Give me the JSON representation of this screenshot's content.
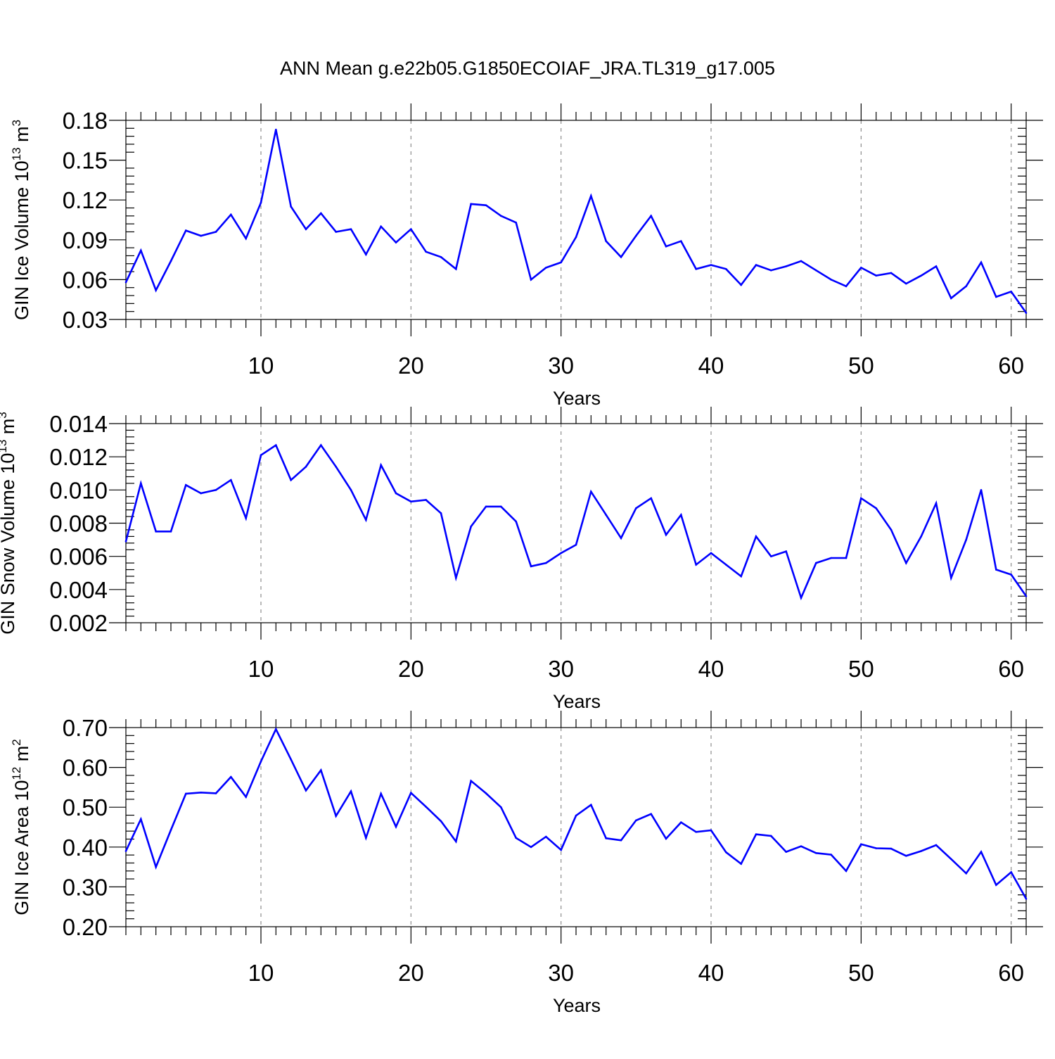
{
  "title": "ANN Mean g.e22b05.G1850ECOIAF_JRA.TL319_g17.005",
  "colors": {
    "series": "#0000ff",
    "axis": "#000000",
    "grid": "#8c8c8c"
  },
  "chart_data": [
    {
      "type": "line",
      "ylabel_main": "GIN Ice Volume 10",
      "ylabel_exp": "13",
      "ylabel_unit": " m",
      "ylabel_unit_exp": "3",
      "xlabel": "Years",
      "xlim": [
        1,
        61
      ],
      "ylim": [
        0.03,
        0.18
      ],
      "x_ticks": [
        "10",
        "20",
        "30",
        "40",
        "50",
        "60"
      ],
      "y_ticks": [
        "0.03",
        "0.06",
        "0.09",
        "0.12",
        "0.15",
        "0.18"
      ],
      "grid": "vertical dashed at x ticks",
      "series": [
        {
          "x": [
            1,
            2,
            3,
            4,
            5,
            6,
            7,
            8,
            9,
            10,
            11,
            12,
            13,
            14,
            15,
            16,
            17,
            18,
            19,
            20,
            21,
            22,
            23,
            24,
            25,
            26,
            27,
            28,
            29,
            30,
            31,
            32,
            33,
            34,
            35,
            36,
            37,
            38,
            39,
            40,
            41,
            42,
            43,
            44,
            45,
            46,
            47,
            48,
            49,
            50,
            51,
            52,
            53,
            54,
            55,
            56,
            57,
            58,
            59,
            60,
            61
          ],
          "values": [
            0.058,
            0.082,
            0.052,
            0.074,
            0.097,
            0.093,
            0.096,
            0.109,
            0.091,
            0.118,
            0.173,
            0.115,
            0.098,
            0.11,
            0.096,
            0.098,
            0.079,
            0.1,
            0.088,
            0.098,
            0.081,
            0.077,
            0.068,
            0.117,
            0.116,
            0.108,
            0.103,
            0.06,
            0.069,
            0.073,
            0.092,
            0.123,
            0.089,
            0.077,
            0.093,
            0.108,
            0.085,
            0.089,
            0.068,
            0.071,
            0.068,
            0.056,
            0.071,
            0.067,
            0.07,
            0.074,
            0.067,
            0.06,
            0.055,
            0.069,
            0.063,
            0.065,
            0.057,
            0.063,
            0.07,
            0.046,
            0.055,
            0.073,
            0.047,
            0.051,
            0.035
          ]
        }
      ]
    },
    {
      "type": "line",
      "ylabel_main": "GIN Snow Volume 10",
      "ylabel_exp": "13",
      "ylabel_unit": " m",
      "ylabel_unit_exp": "3",
      "xlabel": "Years",
      "xlim": [
        1,
        61
      ],
      "ylim": [
        0.002,
        0.014
      ],
      "x_ticks": [
        "10",
        "20",
        "30",
        "40",
        "50",
        "60"
      ],
      "y_ticks": [
        "0.002",
        "0.004",
        "0.006",
        "0.008",
        "0.010",
        "0.012",
        "0.014"
      ],
      "grid": "vertical dashed at x ticks",
      "series": [
        {
          "x": [
            1,
            2,
            3,
            4,
            5,
            6,
            7,
            8,
            9,
            10,
            11,
            12,
            13,
            14,
            15,
            16,
            17,
            18,
            19,
            20,
            21,
            22,
            23,
            24,
            25,
            26,
            27,
            28,
            29,
            30,
            31,
            32,
            33,
            34,
            35,
            36,
            37,
            38,
            39,
            40,
            41,
            42,
            43,
            44,
            45,
            46,
            47,
            48,
            49,
            50,
            51,
            52,
            53,
            54,
            55,
            56,
            57,
            58,
            59,
            60,
            61
          ],
          "values": [
            0.0069,
            0.0104,
            0.0075,
            0.0075,
            0.0103,
            0.0098,
            0.01,
            0.0106,
            0.0083,
            0.0121,
            0.0127,
            0.0106,
            0.0114,
            0.0127,
            0.0114,
            0.01,
            0.0082,
            0.0115,
            0.0098,
            0.0093,
            0.0094,
            0.0086,
            0.0047,
            0.0078,
            0.009,
            0.009,
            0.0081,
            0.0054,
            0.0056,
            0.0062,
            0.0067,
            0.0099,
            0.0085,
            0.0071,
            0.0089,
            0.0095,
            0.0073,
            0.0085,
            0.0055,
            0.0062,
            0.0055,
            0.0048,
            0.0072,
            0.006,
            0.0063,
            0.0035,
            0.0056,
            0.0059,
            0.0059,
            0.0095,
            0.0089,
            0.0076,
            0.0056,
            0.0072,
            0.0092,
            0.0047,
            0.007,
            0.01,
            0.0052,
            0.0049,
            0.0036
          ]
        }
      ]
    },
    {
      "type": "line",
      "ylabel_main": "GIN Ice Area 10",
      "ylabel_exp": "12",
      "ylabel_unit": " m",
      "ylabel_unit_exp": "2",
      "xlabel": "Years",
      "xlim": [
        1,
        61
      ],
      "ylim": [
        0.2,
        0.7
      ],
      "x_ticks": [
        "10",
        "20",
        "30",
        "40",
        "50",
        "60"
      ],
      "y_ticks": [
        "0.20",
        "0.30",
        "0.40",
        "0.50",
        "0.60",
        "0.70"
      ],
      "grid": "vertical dashed at x ticks",
      "series": [
        {
          "x": [
            1,
            2,
            3,
            4,
            5,
            6,
            7,
            8,
            9,
            10,
            11,
            12,
            13,
            14,
            15,
            16,
            17,
            18,
            19,
            20,
            21,
            22,
            23,
            24,
            25,
            26,
            27,
            28,
            29,
            30,
            31,
            32,
            33,
            34,
            35,
            36,
            37,
            38,
            39,
            40,
            41,
            42,
            43,
            44,
            45,
            46,
            47,
            48,
            49,
            50,
            51,
            52,
            53,
            54,
            55,
            56,
            57,
            58,
            59,
            60,
            61
          ],
          "values": [
            0.39,
            0.47,
            0.35,
            0.443,
            0.534,
            0.537,
            0.535,
            0.576,
            0.526,
            0.615,
            0.696,
            0.62,
            0.542,
            0.593,
            0.478,
            0.54,
            0.423,
            0.534,
            0.451,
            0.536,
            0.501,
            0.465,
            0.414,
            0.566,
            0.535,
            0.5,
            0.423,
            0.4,
            0.426,
            0.393,
            0.479,
            0.506,
            0.422,
            0.417,
            0.467,
            0.483,
            0.421,
            0.462,
            0.438,
            0.442,
            0.387,
            0.358,
            0.432,
            0.428,
            0.388,
            0.402,
            0.385,
            0.381,
            0.34,
            0.407,
            0.397,
            0.396,
            0.378,
            0.39,
            0.405,
            0.37,
            0.334,
            0.388,
            0.305,
            0.337,
            0.27
          ]
        }
      ]
    }
  ]
}
